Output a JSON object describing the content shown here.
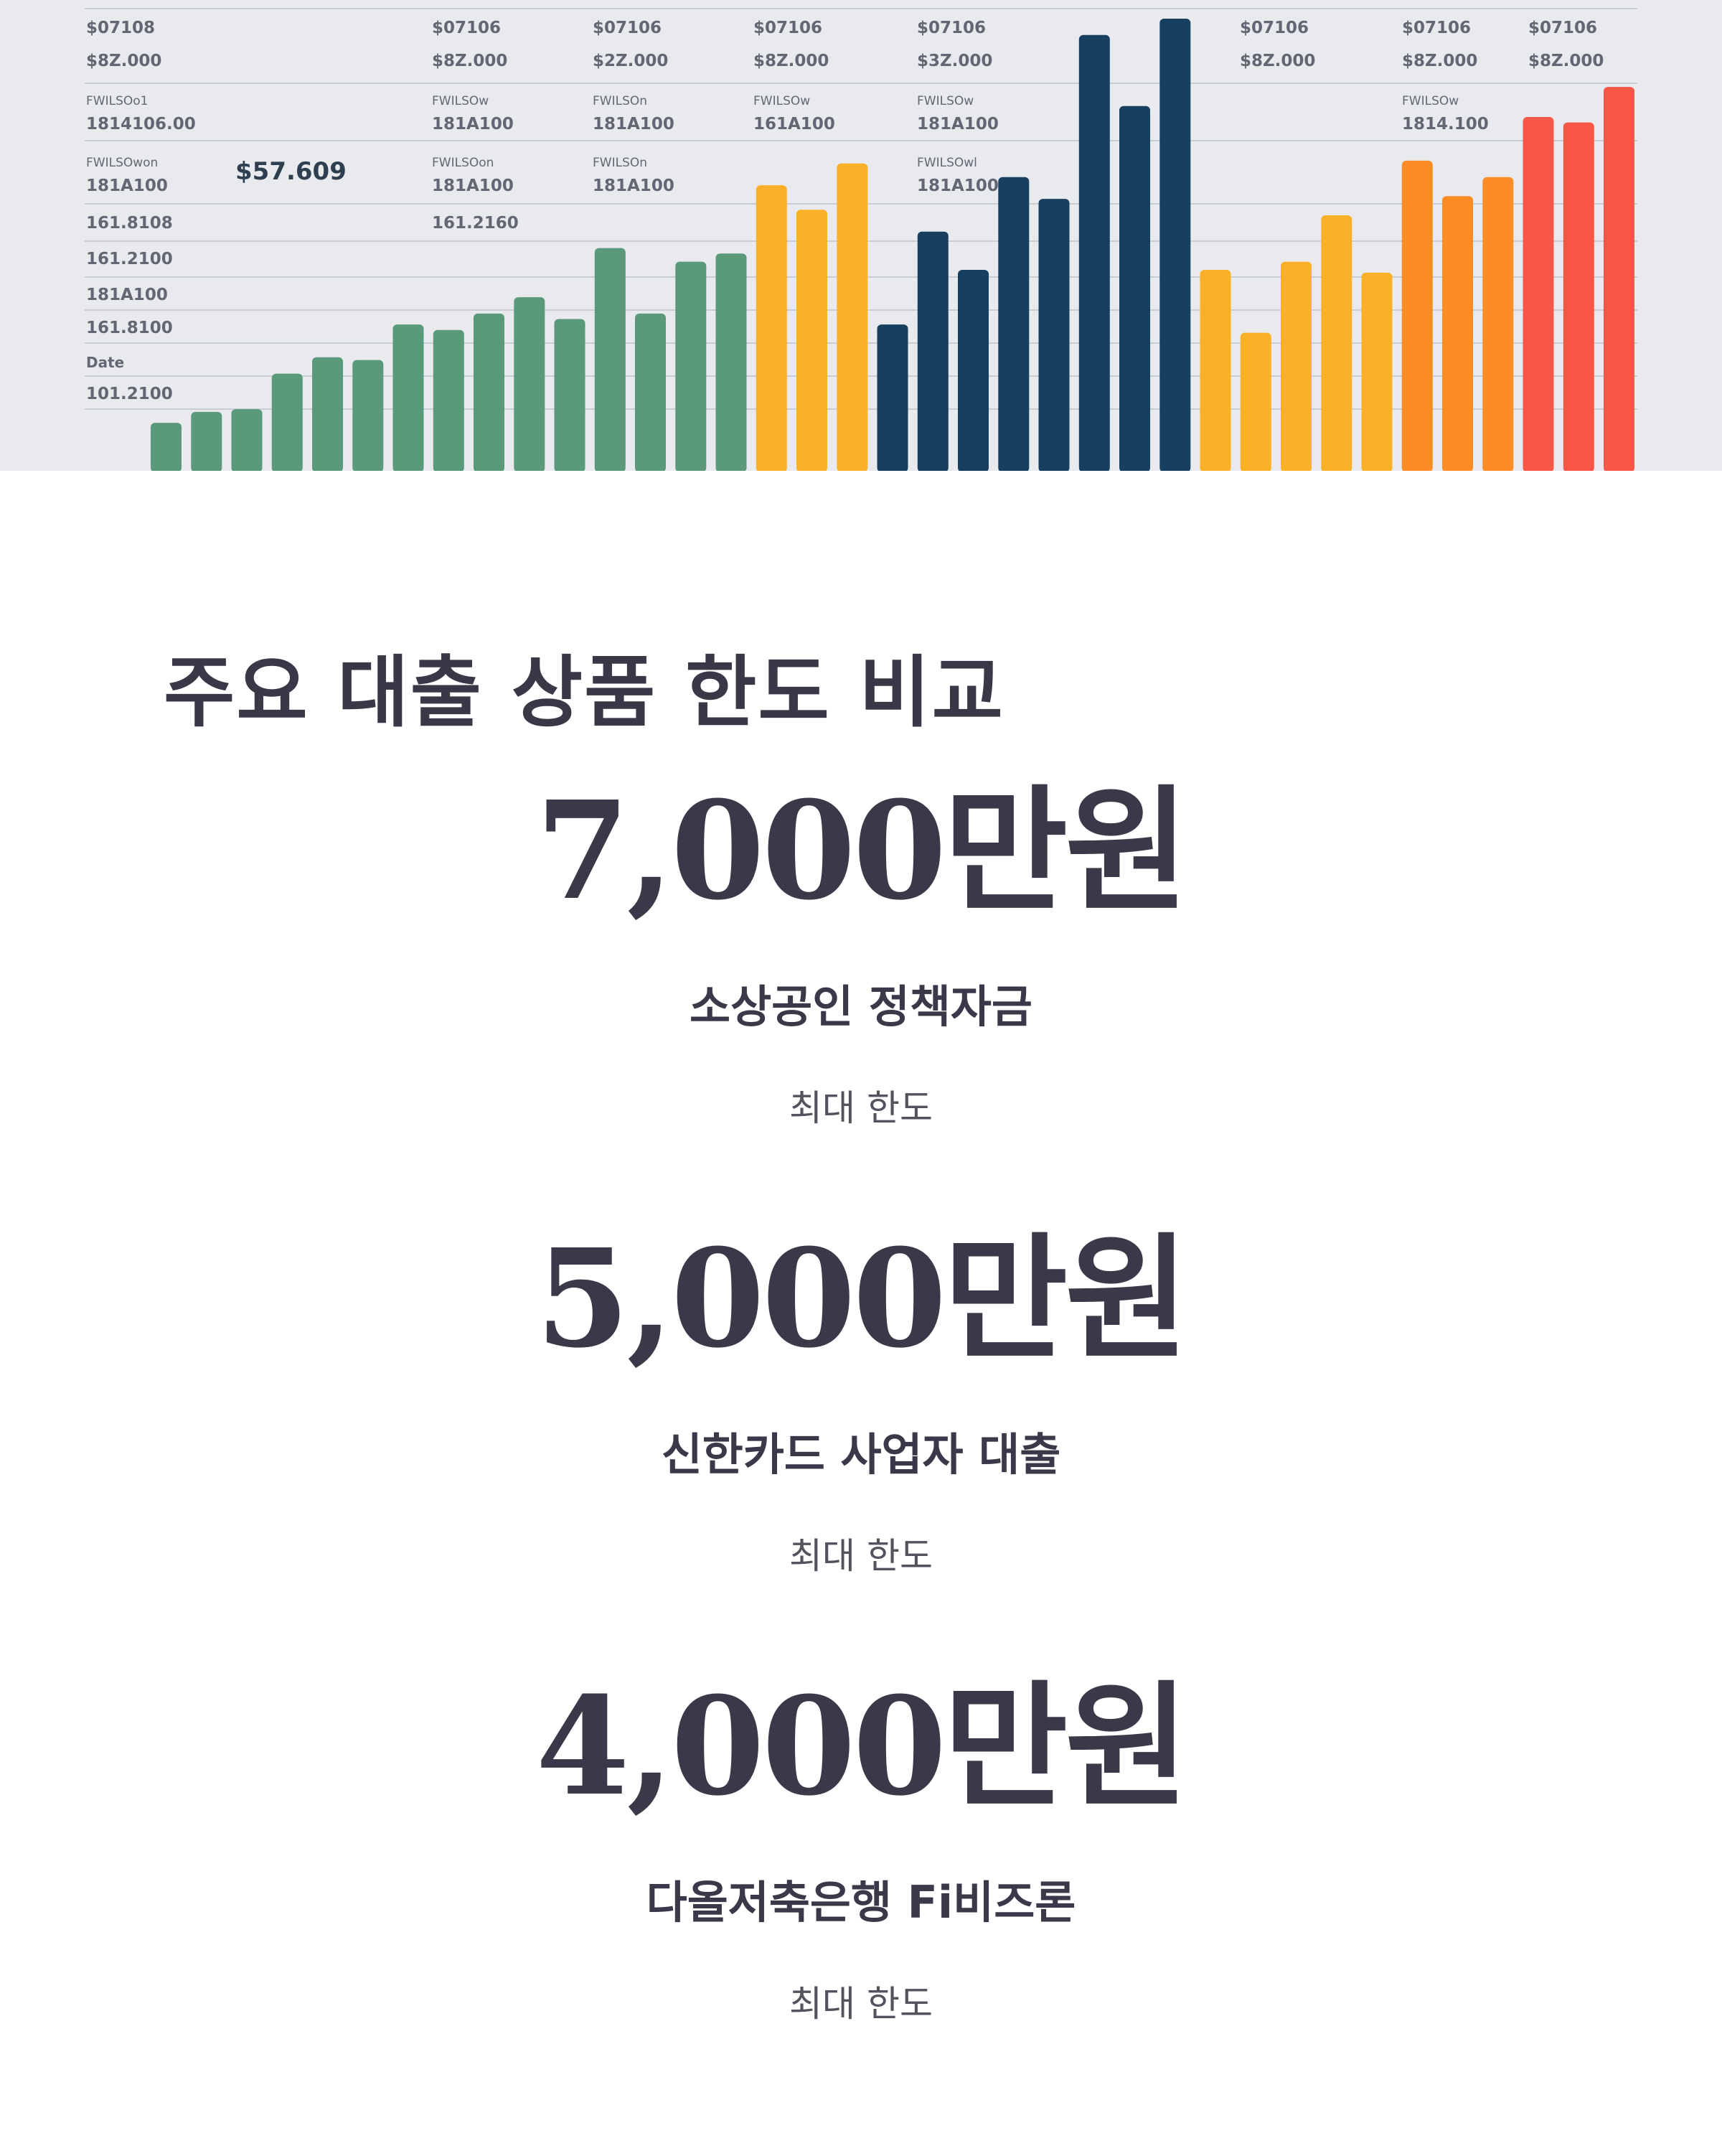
{
  "hero_chart": {
    "annotation": "$57.609",
    "column_labels": [
      {
        "line1": "$07108",
        "line2": "$8Z.000",
        "line3": "FWILSOo1",
        "line4": "1814106.00",
        "line5": "FWILSOwon",
        "line6": "181A100"
      },
      {
        "line1": "$07106",
        "line2": "$8Z.000",
        "line3": "FWILSOw",
        "line4": "181A100",
        "line5": "FWILSOon",
        "line6": "181A100"
      },
      {
        "line1": "$07106",
        "line2": "$2Z.000",
        "line3": "FWILSOn",
        "line4": "181A100",
        "line5": "FWILSOn",
        "line6": "181A100"
      },
      {
        "line1": "$07106",
        "line2": "$8Z.000",
        "line3": "FWILSOw",
        "line4": "161A100"
      },
      {
        "line1": "$07106",
        "line2": "$3Z.000",
        "line3": "FWILSOw",
        "line4": "181A100",
        "line5": "FWILSOwl",
        "line6": "181A100"
      },
      {
        "line1": "$07106",
        "line2": "$8Z.000"
      },
      {
        "line1": "$07106",
        "line2": "$8Z.000",
        "line3": "FWILSOw",
        "line4": "1814.100"
      },
      {
        "line1": "$07106",
        "line2": "$8Z.000"
      }
    ],
    "y_axis_labels": [
      "161.8108",
      "161.2100",
      "181A100",
      "161.8100",
      "Date",
      "101.2100"
    ],
    "extra_label": "161.2160",
    "values": [
      8,
      10,
      10.5,
      17,
      20,
      19.5,
      26,
      25,
      28,
      31,
      27,
      40,
      28,
      37.5,
      39,
      51.5,
      47,
      55.5,
      26,
      43,
      36,
      53,
      49,
      79,
      66,
      82,
      36,
      24.5,
      37.5,
      46,
      35.5,
      56,
      49.5,
      53,
      64,
      63,
      69.5
    ],
    "colors": [
      "#5a997a",
      "#5a997a",
      "#5a997a",
      "#5a997a",
      "#5a997a",
      "#5a997a",
      "#5a997a",
      "#5a997a",
      "#5a997a",
      "#5a997a",
      "#5a997a",
      "#5a997a",
      "#5a997a",
      "#5a997a",
      "#5a997a",
      "#fbb02a",
      "#fbb02a",
      "#fbb02a",
      "#173f5f",
      "#173f5f",
      "#173f5f",
      "#173f5f",
      "#173f5f",
      "#173f5f",
      "#173f5f",
      "#173f5f",
      "#fbb02a",
      "#fbb02a",
      "#fbb02a",
      "#fbb02a",
      "#fbb02a",
      "#fb8c26",
      "#fb8c26",
      "#fb8c26",
      "#f85747",
      "#f85747",
      "#f85747"
    ]
  },
  "section_title": "주요 대출 상품 한도 비교",
  "products": [
    {
      "amount": "7,000만원",
      "name": "소상공인 정책자금",
      "note": "최대 한도"
    },
    {
      "amount": "5,000만원",
      "name": "신한카드 사업자 대출",
      "note": "최대 한도"
    },
    {
      "amount": "4,000만원",
      "name": "다올저축은행 Fi비즈론",
      "note": "최대 한도"
    }
  ]
}
